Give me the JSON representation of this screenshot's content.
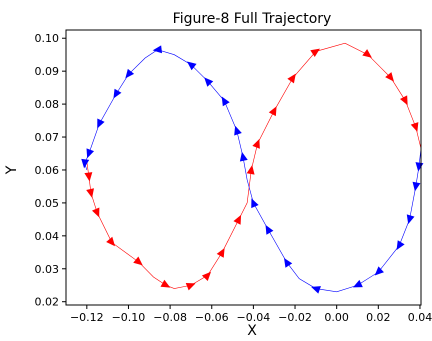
{
  "chart_data": {
    "type": "line",
    "title": "Figure-8 Full Trajectory",
    "xlabel": "X",
    "ylabel": "Y",
    "xlim": [
      -0.13,
      0.0405
    ],
    "ylim": [
      0.019,
      0.1025
    ],
    "x_ticks": [
      -0.12,
      -0.1,
      -0.08,
      -0.06,
      -0.04,
      -0.02,
      0.0,
      0.02,
      0.04
    ],
    "x_tick_labels": [
      "−0.12",
      "−0.10",
      "−0.08",
      "−0.06",
      "−0.04",
      "−0.02",
      "0.00",
      "0.02",
      "0.04"
    ],
    "y_ticks": [
      0.02,
      0.03,
      0.04,
      0.05,
      0.06,
      0.07,
      0.08,
      0.09,
      0.1
    ],
    "y_tick_labels": [
      "0.02",
      "0.03",
      "0.04",
      "0.05",
      "0.06",
      "0.07",
      "0.08",
      "0.09",
      "0.10"
    ],
    "grid": false,
    "series": [
      {
        "color": "#ff0000",
        "marker": "arrow",
        "points": [
          [
            -0.12,
            0.0625
          ],
          [
            -0.119,
            0.058
          ],
          [
            -0.118,
            0.053
          ],
          [
            -0.115,
            0.047
          ],
          [
            -0.108,
            0.038
          ],
          [
            -0.095,
            0.032
          ],
          [
            -0.088,
            0.0275
          ],
          [
            -0.082,
            0.025
          ],
          [
            -0.078,
            0.024
          ],
          [
            -0.07,
            0.025
          ],
          [
            -0.062,
            0.028
          ],
          [
            -0.055,
            0.035
          ],
          [
            -0.047,
            0.045
          ],
          [
            -0.043,
            0.05
          ],
          [
            -0.041,
            0.06
          ],
          [
            -0.038,
            0.068
          ],
          [
            -0.03,
            0.078
          ],
          [
            -0.021,
            0.088
          ],
          [
            -0.01,
            0.096
          ],
          [
            0.004,
            0.0985
          ],
          [
            0.015,
            0.095
          ],
          [
            0.026,
            0.088
          ],
          [
            0.033,
            0.081
          ],
          [
            0.038,
            0.073
          ],
          [
            0.0405,
            0.0665
          ]
        ],
        "arrows": [
          [
            -0.119,
            0.058
          ],
          [
            -0.118,
            0.053
          ],
          [
            -0.115,
            0.047
          ],
          [
            -0.108,
            0.038
          ],
          [
            -0.095,
            0.032
          ],
          [
            -0.082,
            0.025
          ],
          [
            -0.07,
            0.025
          ],
          [
            -0.062,
            0.028
          ],
          [
            -0.055,
            0.035
          ],
          [
            -0.047,
            0.045
          ],
          [
            -0.041,
            0.06
          ],
          [
            -0.038,
            0.068
          ],
          [
            -0.03,
            0.078
          ],
          [
            -0.021,
            0.088
          ],
          [
            -0.01,
            0.096
          ],
          [
            0.015,
            0.095
          ],
          [
            0.026,
            0.088
          ],
          [
            0.033,
            0.081
          ],
          [
            0.038,
            0.073
          ]
        ]
      },
      {
        "color": "#0000ff",
        "marker": "arrow",
        "points": [
          [
            0.0405,
            0.0665
          ],
          [
            0.0395,
            0.061
          ],
          [
            0.038,
            0.055
          ],
          [
            0.035,
            0.045
          ],
          [
            0.03,
            0.037
          ],
          [
            0.02,
            0.029
          ],
          [
            0.01,
            0.025
          ],
          [
            0.0,
            0.023
          ],
          [
            -0.01,
            0.024
          ],
          [
            -0.018,
            0.027
          ],
          [
            -0.024,
            0.032
          ],
          [
            -0.033,
            0.042
          ],
          [
            -0.04,
            0.05
          ],
          [
            -0.043,
            0.057
          ],
          [
            -0.045,
            0.064
          ],
          [
            -0.048,
            0.072
          ],
          [
            -0.054,
            0.081
          ],
          [
            -0.062,
            0.087
          ],
          [
            -0.07,
            0.092
          ],
          [
            -0.078,
            0.095
          ],
          [
            -0.086,
            0.0965
          ],
          [
            -0.092,
            0.094
          ],
          [
            -0.1,
            0.089
          ],
          [
            -0.106,
            0.083
          ],
          [
            -0.114,
            0.074
          ],
          [
            -0.119,
            0.065
          ],
          [
            -0.121,
            0.062
          ],
          [
            -0.12,
            0.06
          ]
        ],
        "arrows": [
          [
            0.0395,
            0.061
          ],
          [
            0.038,
            0.055
          ],
          [
            0.035,
            0.045
          ],
          [
            0.03,
            0.037
          ],
          [
            0.02,
            0.029
          ],
          [
            0.01,
            0.025
          ],
          [
            -0.01,
            0.024
          ],
          [
            -0.024,
            0.032
          ],
          [
            -0.033,
            0.042
          ],
          [
            -0.04,
            0.05
          ],
          [
            -0.045,
            0.064
          ],
          [
            -0.048,
            0.072
          ],
          [
            -0.054,
            0.081
          ],
          [
            -0.062,
            0.087
          ],
          [
            -0.07,
            0.092
          ],
          [
            -0.086,
            0.0965
          ],
          [
            -0.1,
            0.089
          ],
          [
            -0.106,
            0.083
          ],
          [
            -0.114,
            0.074
          ],
          [
            -0.119,
            0.065
          ],
          [
            -0.121,
            0.062
          ]
        ]
      }
    ]
  }
}
